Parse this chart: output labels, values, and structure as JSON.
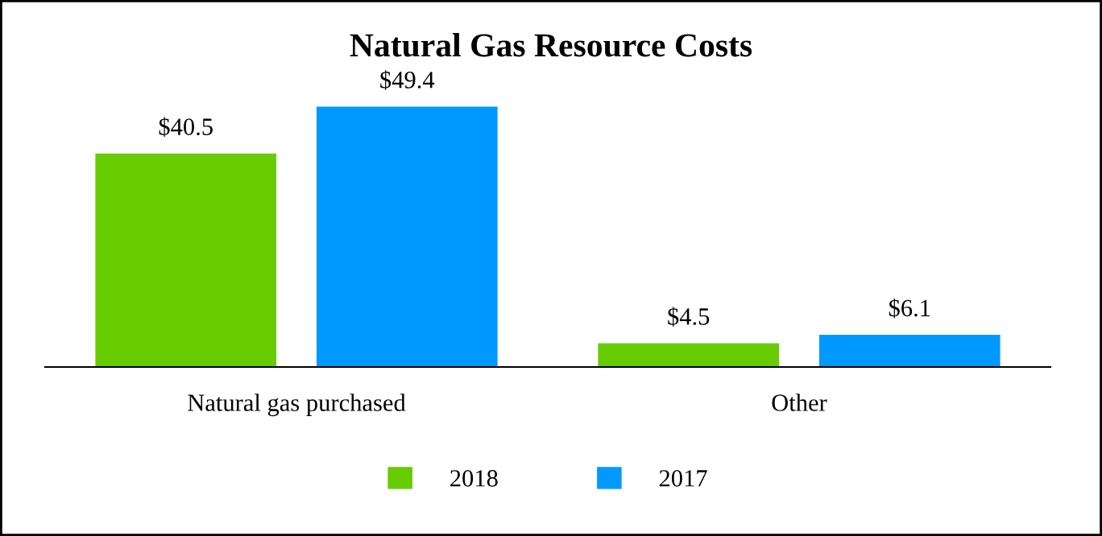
{
  "chart_data": {
    "type": "bar",
    "title": "Natural Gas Resource Costs",
    "categories": [
      "Natural gas purchased",
      "Other"
    ],
    "series": [
      {
        "name": "2018",
        "color": "#66cc00",
        "values": [
          40.5,
          4.5
        ],
        "value_labels": [
          "$40.5",
          "$4.5"
        ]
      },
      {
        "name": "2017",
        "color": "#0099ff",
        "values": [
          49.4,
          6.1
        ],
        "value_labels": [
          "$49.4",
          "$6.1"
        ]
      }
    ],
    "legend": "bottom",
    "grid": false
  }
}
